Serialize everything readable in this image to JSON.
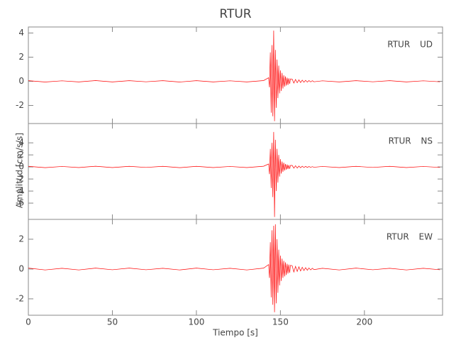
{
  "chart_data": [
    {
      "type": "line",
      "title": "RTUR",
      "label": "RTUR UD",
      "color": "#ff0000",
      "x": [
        0,
        10,
        20,
        30,
        40,
        50,
        60,
        70,
        80,
        90,
        100,
        110,
        120,
        130,
        140,
        143,
        143.5,
        144,
        144.5,
        145,
        145.5,
        146,
        146.5,
        147,
        147.5,
        148,
        148.5,
        149,
        149.5,
        150,
        150.5,
        151,
        151.5,
        152,
        152.5,
        153,
        153.5,
        154,
        154.5,
        155,
        155.5,
        156,
        157,
        158,
        159,
        160,
        161,
        162,
        163,
        164,
        165,
        166,
        167,
        168,
        169,
        170,
        175,
        185,
        195,
        205,
        215,
        225,
        235,
        245
      ],
      "values": [
        0.05,
        -0.06,
        0.04,
        -0.05,
        0.06,
        -0.05,
        0.05,
        -0.04,
        0.05,
        -0.06,
        0.05,
        -0.05,
        0.04,
        -0.05,
        0.06,
        0.3,
        -0.5,
        2.4,
        -2.6,
        3.0,
        -2.9,
        4.2,
        -3.3,
        2.6,
        -2.2,
        1.8,
        -1.4,
        1.3,
        -1.0,
        0.9,
        -0.8,
        0.7,
        -0.6,
        0.5,
        -0.45,
        0.4,
        -0.35,
        0.3,
        -0.3,
        0.25,
        -0.2,
        0.2,
        0.18,
        -0.15,
        0.15,
        -0.12,
        0.12,
        -0.1,
        0.1,
        -0.08,
        0.08,
        -0.07,
        0.06,
        -0.05,
        0.05,
        -0.04,
        0.04,
        -0.05,
        0.05,
        -0.04,
        0.05,
        -0.05,
        0.04,
        -0.04
      ],
      "xlim": [
        0,
        246.5
      ],
      "xticks": [
        0,
        50,
        100,
        150,
        200
      ],
      "ylim": [
        -3.5,
        4.5
      ],
      "yticks": [
        -2,
        0,
        2,
        4
      ]
    },
    {
      "type": "line",
      "label": "RTUR NS",
      "y_label": "Amplitud [cm/s/s]",
      "color": "#ff0000",
      "x": [
        0,
        10,
        20,
        30,
        40,
        50,
        60,
        70,
        80,
        90,
        100,
        110,
        120,
        130,
        140,
        143,
        143.5,
        144,
        144.5,
        145,
        145.5,
        146,
        146.5,
        147,
        147.5,
        148,
        148.5,
        149,
        149.5,
        150,
        150.5,
        151,
        151.5,
        152,
        152.5,
        153,
        153.5,
        154,
        154.5,
        155,
        155.5,
        156,
        157,
        158,
        159,
        160,
        161,
        162,
        163,
        164,
        165,
        166,
        167,
        168,
        169,
        170,
        175,
        185,
        195,
        205,
        215,
        225,
        235,
        245
      ],
      "values": [
        0.1,
        -0.12,
        0.08,
        -0.1,
        0.12,
        -0.1,
        0.1,
        -0.08,
        0.1,
        -0.12,
        0.1,
        -0.1,
        0.08,
        -0.1,
        0.12,
        0.5,
        -1.2,
        3.0,
        -3.5,
        4.0,
        -5.0,
        5.8,
        -8.3,
        4.5,
        -4.0,
        3.0,
        -2.6,
        2.0,
        -1.6,
        1.3,
        -1.1,
        0.9,
        -0.8,
        0.7,
        -0.6,
        0.5,
        -0.45,
        0.4,
        -0.35,
        0.3,
        -0.3,
        0.25,
        0.25,
        -0.2,
        0.2,
        -0.18,
        0.15,
        -0.13,
        0.12,
        -0.1,
        0.1,
        -0.08,
        0.07,
        -0.06,
        0.05,
        -0.05,
        0.08,
        -0.1,
        0.1,
        -0.08,
        0.1,
        -0.1,
        0.08,
        -0.08
      ],
      "xlim": [
        0,
        246.5
      ],
      "xticks": [
        0,
        50,
        100,
        150,
        200
      ],
      "ylim": [
        -8.7,
        7.2
      ],
      "yticks": [
        -6,
        -4,
        -2,
        0,
        2,
        4
      ]
    },
    {
      "type": "line",
      "label": "RTUR EW",
      "x_label": "Tiempo [s]",
      "color": "#ff0000",
      "x": [
        0,
        10,
        20,
        30,
        40,
        50,
        60,
        70,
        80,
        90,
        100,
        110,
        120,
        130,
        140,
        143,
        143.5,
        144,
        144.5,
        145,
        145.5,
        146,
        146.5,
        147,
        147.5,
        148,
        148.5,
        149,
        149.5,
        150,
        150.5,
        151,
        151.5,
        152,
        152.5,
        153,
        153.5,
        154,
        154.5,
        155,
        155.5,
        156,
        157,
        158,
        159,
        160,
        161,
        162,
        163,
        164,
        165,
        166,
        167,
        168,
        169,
        170,
        175,
        185,
        195,
        205,
        215,
        225,
        235,
        245
      ],
      "values": [
        0.06,
        -0.06,
        0.05,
        -0.06,
        0.06,
        -0.05,
        0.06,
        -0.05,
        0.05,
        -0.06,
        0.06,
        -0.05,
        0.05,
        -0.06,
        0.06,
        0.3,
        -0.6,
        1.8,
        -1.9,
        2.6,
        -2.4,
        2.9,
        -2.9,
        3.0,
        -2.3,
        2.0,
        -1.6,
        1.3,
        -1.1,
        0.9,
        -0.8,
        0.7,
        -0.6,
        0.55,
        -0.5,
        0.45,
        -0.4,
        0.35,
        -0.3,
        0.3,
        -0.25,
        0.25,
        0.22,
        -0.2,
        0.18,
        -0.16,
        0.15,
        -0.13,
        0.12,
        -0.1,
        0.09,
        -0.08,
        0.07,
        -0.06,
        0.05,
        -0.04,
        0.05,
        -0.06,
        0.06,
        -0.05,
        0.05,
        -0.06,
        0.05,
        -0.05
      ],
      "xlim": [
        0,
        246.5
      ],
      "xticks": [
        0,
        50,
        100,
        150,
        200
      ],
      "ylim": [
        -3.1,
        3.33
      ],
      "yticks": [
        -2,
        0,
        2
      ]
    }
  ]
}
